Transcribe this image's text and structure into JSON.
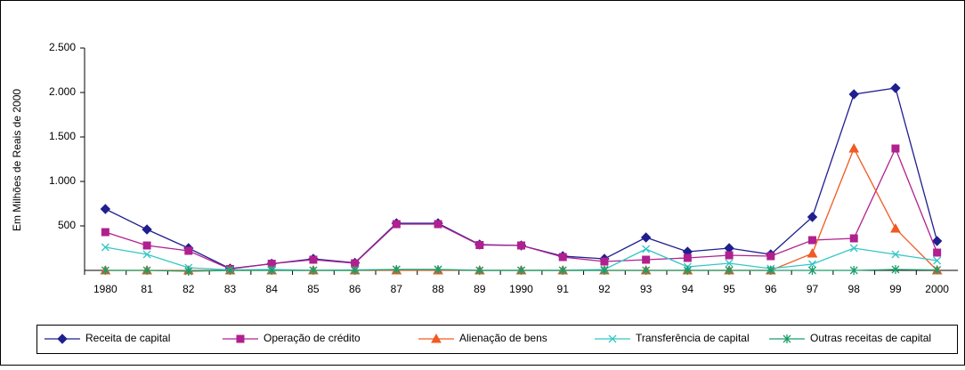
{
  "chart_data": {
    "type": "line",
    "y_label": "Em Milhões de Reais de 2000",
    "categories": [
      "1980",
      "81",
      "82",
      "83",
      "84",
      "85",
      "86",
      "87",
      "88",
      "89",
      "1990",
      "91",
      "92",
      "93",
      "94",
      "95",
      "96",
      "97",
      "98",
      "99",
      "2000"
    ],
    "series": [
      {
        "name": "Receita de capital",
        "color": "#1f1f8f",
        "marker": "diamond",
        "values": [
          690,
          460,
          250,
          20,
          75,
          130,
          85,
          530,
          530,
          290,
          280,
          160,
          130,
          370,
          210,
          250,
          180,
          600,
          1980,
          2050,
          330
        ]
      },
      {
        "name": "Operação de crédito",
        "color": "#b0208f",
        "marker": "square",
        "values": [
          430,
          280,
          220,
          15,
          75,
          120,
          80,
          520,
          520,
          285,
          280,
          150,
          100,
          120,
          140,
          170,
          160,
          340,
          360,
          1370,
          200
        ]
      },
      {
        "name": "Alienação de bens",
        "color": "#f05a23",
        "marker": "triangle",
        "values": [
          0,
          0,
          0,
          0,
          0,
          0,
          0,
          0,
          0,
          0,
          0,
          0,
          0,
          0,
          0,
          0,
          0,
          190,
          1370,
          470,
          0
        ]
      },
      {
        "name": "Transferência de capital",
        "color": "#33c6c6",
        "marker": "x",
        "values": [
          260,
          180,
          30,
          5,
          10,
          0,
          5,
          10,
          10,
          0,
          0,
          0,
          10,
          240,
          40,
          80,
          20,
          70,
          250,
          180,
          110
        ]
      },
      {
        "name": "Outras receitas de capital",
        "color": "#1a9e6a",
        "marker": "star",
        "values": [
          0,
          0,
          -10,
          0,
          0,
          0,
          0,
          10,
          10,
          0,
          0,
          0,
          0,
          0,
          0,
          0,
          0,
          0,
          0,
          10,
          5
        ]
      }
    ],
    "ylim": [
      0,
      2500
    ],
    "yticks": [
      500,
      {
        "value": 1000,
        "label": "1.000"
      },
      {
        "value": 1500,
        "label": "1.500"
      },
      {
        "value": 2000,
        "label": "2.000"
      },
      {
        "value": 2500,
        "label": "2.500"
      }
    ],
    "legend": "bottom"
  }
}
